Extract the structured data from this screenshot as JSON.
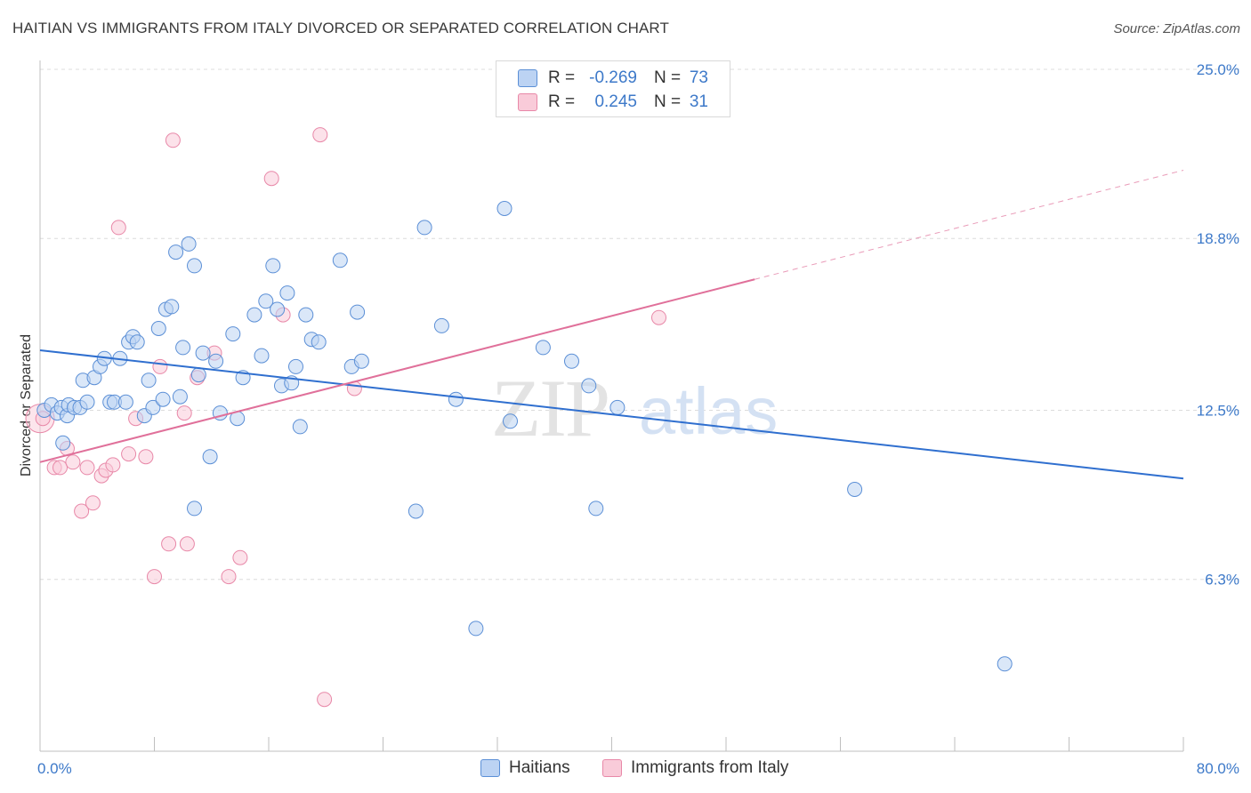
{
  "title": "HAITIAN VS IMMIGRANTS FROM ITALY DIVORCED OR SEPARATED CORRELATION CHART",
  "source": "Source: ZipAtlas.com",
  "watermark": {
    "zip": "ZIP",
    "atlas": "atlas"
  },
  "colors": {
    "haitians": "#5b8fd6",
    "haitians_fill": "#bcd3f3",
    "italy": "#e888a8",
    "italy_fill": "#f9cbd9",
    "blue_line": "#2f6fcf",
    "pink_line": "#e0709a",
    "tick_text": "#3d79c9"
  },
  "legend_top": [
    {
      "r_label": "R =",
      "r_value": "-0.269",
      "n_label": "N =",
      "n_value": "73"
    },
    {
      "r_label": "R =",
      "r_value": "0.245",
      "n_label": "N =",
      "n_value": "31"
    }
  ],
  "legend_bottom": [
    "Haitians",
    "Immigrants from Italy"
  ],
  "chart_data": {
    "type": "scatter",
    "title": "HAITIAN VS IMMIGRANTS FROM ITALY DIVORCED OR SEPARATED CORRELATION CHART",
    "ylabel": "Divorced or Separated",
    "xlabel": "",
    "xlim": [
      0,
      80
    ],
    "ylim": [
      0,
      25
    ],
    "x_tick_labels": [
      "0.0%",
      "80.0%"
    ],
    "y_ticks": [
      6.3,
      12.5,
      18.8,
      25.0
    ],
    "y_tick_labels": [
      "6.3%",
      "12.5%",
      "18.8%",
      "25.0%"
    ],
    "grid": "horizontal dashed",
    "legend_position": "top-center",
    "series": [
      {
        "name": "Haitians",
        "R": -0.269,
        "N": 73,
        "trendline": {
          "x": [
            0,
            80
          ],
          "y": [
            14.7,
            10.0
          ]
        },
        "points": [
          [
            0.3,
            12.5
          ],
          [
            0.8,
            12.7
          ],
          [
            1.2,
            12.4
          ],
          [
            1.5,
            12.6
          ],
          [
            1.6,
            11.3
          ],
          [
            1.9,
            12.3
          ],
          [
            2.0,
            12.7
          ],
          [
            2.4,
            12.6
          ],
          [
            2.8,
            12.6
          ],
          [
            3.0,
            13.6
          ],
          [
            3.3,
            12.8
          ],
          [
            3.8,
            13.7
          ],
          [
            4.2,
            14.1
          ],
          [
            4.5,
            14.4
          ],
          [
            4.9,
            12.8
          ],
          [
            5.2,
            12.8
          ],
          [
            5.6,
            14.4
          ],
          [
            6.0,
            12.8
          ],
          [
            6.2,
            15.0
          ],
          [
            6.5,
            15.2
          ],
          [
            6.8,
            15.0
          ],
          [
            7.3,
            12.3
          ],
          [
            7.6,
            13.6
          ],
          [
            7.9,
            12.6
          ],
          [
            8.3,
            15.5
          ],
          [
            8.6,
            12.9
          ],
          [
            8.8,
            16.2
          ],
          [
            9.2,
            16.3
          ],
          [
            9.5,
            18.3
          ],
          [
            9.8,
            13.0
          ],
          [
            10.0,
            14.8
          ],
          [
            10.4,
            18.6
          ],
          [
            10.8,
            17.8
          ],
          [
            11.1,
            13.8
          ],
          [
            11.4,
            14.6
          ],
          [
            11.9,
            10.8
          ],
          [
            12.3,
            14.3
          ],
          [
            12.6,
            12.4
          ],
          [
            13.5,
            15.3
          ],
          [
            13.8,
            12.2
          ],
          [
            14.2,
            13.7
          ],
          [
            15.0,
            16.0
          ],
          [
            15.5,
            14.5
          ],
          [
            15.8,
            16.5
          ],
          [
            16.3,
            17.8
          ],
          [
            16.6,
            16.2
          ],
          [
            16.9,
            13.4
          ],
          [
            17.3,
            16.8
          ],
          [
            17.6,
            13.5
          ],
          [
            17.9,
            14.1
          ],
          [
            18.2,
            11.9
          ],
          [
            18.6,
            16.0
          ],
          [
            19.0,
            15.1
          ],
          [
            19.5,
            15.0
          ],
          [
            21.0,
            18.0
          ],
          [
            21.8,
            14.1
          ],
          [
            22.2,
            16.1
          ],
          [
            22.5,
            14.3
          ],
          [
            26.3,
            8.8
          ],
          [
            26.9,
            19.2
          ],
          [
            28.1,
            15.6
          ],
          [
            29.1,
            12.9
          ],
          [
            32.5,
            19.9
          ],
          [
            32.9,
            12.1
          ],
          [
            35.2,
            14.8
          ],
          [
            37.2,
            14.3
          ],
          [
            38.4,
            13.4
          ],
          [
            38.9,
            8.9
          ],
          [
            40.4,
            12.6
          ],
          [
            10.8,
            8.9
          ],
          [
            30.5,
            4.5
          ],
          [
            57.0,
            9.6
          ],
          [
            67.5,
            3.2
          ]
        ]
      },
      {
        "name": "Immigrants from Italy",
        "R": 0.245,
        "N": 31,
        "trendline": {
          "x": [
            0,
            50
          ],
          "y": [
            10.6,
            17.3
          ]
        },
        "trendline_extrapolated": {
          "x": [
            50,
            80
          ],
          "y": [
            17.3,
            21.3
          ]
        },
        "points": [
          [
            0.2,
            12.2
          ],
          [
            1.0,
            10.4
          ],
          [
            1.4,
            10.4
          ],
          [
            1.9,
            11.1
          ],
          [
            2.3,
            10.6
          ],
          [
            2.9,
            8.8
          ],
          [
            3.3,
            10.4
          ],
          [
            3.7,
            9.1
          ],
          [
            4.3,
            10.1
          ],
          [
            4.6,
            10.3
          ],
          [
            5.1,
            10.5
          ],
          [
            5.5,
            19.2
          ],
          [
            6.2,
            10.9
          ],
          [
            6.7,
            12.2
          ],
          [
            7.4,
            10.8
          ],
          [
            8.0,
            6.4
          ],
          [
            8.4,
            14.1
          ],
          [
            9.0,
            7.6
          ],
          [
            9.3,
            22.4
          ],
          [
            10.1,
            12.4
          ],
          [
            10.3,
            7.6
          ],
          [
            11.0,
            13.7
          ],
          [
            12.2,
            14.6
          ],
          [
            13.2,
            6.4
          ],
          [
            14.0,
            7.1
          ],
          [
            16.2,
            21.0
          ],
          [
            17.0,
            16.0
          ],
          [
            19.6,
            22.6
          ],
          [
            19.9,
            1.9
          ],
          [
            22.0,
            13.3
          ],
          [
            43.3,
            15.9
          ]
        ]
      }
    ]
  }
}
